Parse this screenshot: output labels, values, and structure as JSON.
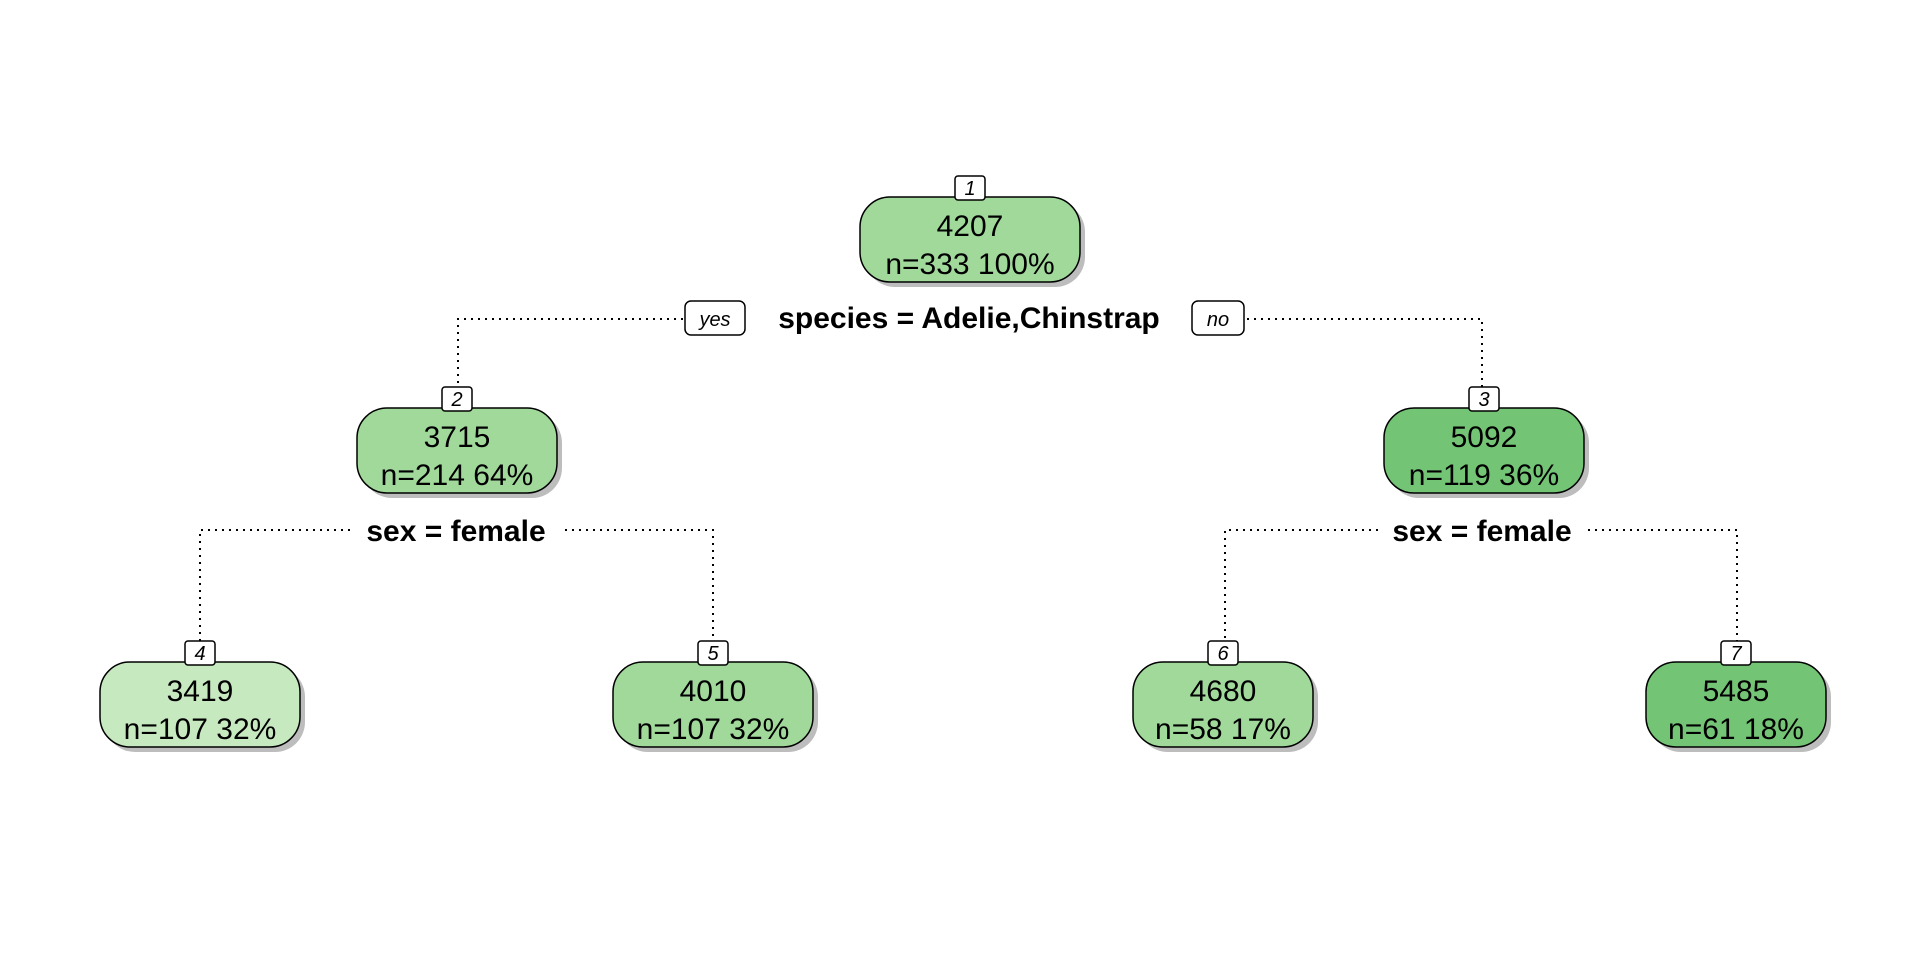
{
  "tree": {
    "nodes": [
      {
        "id": "1",
        "value": "4207",
        "stats": "n=333  100%",
        "fill": "#a1d99b"
      },
      {
        "id": "2",
        "value": "3715",
        "stats": "n=214  64%",
        "fill": "#a1d99b"
      },
      {
        "id": "3",
        "value": "5092",
        "stats": "n=119  36%",
        "fill": "#74c476"
      },
      {
        "id": "4",
        "value": "3419",
        "stats": "n=107  32%",
        "fill": "#c7e9c0"
      },
      {
        "id": "5",
        "value": "4010",
        "stats": "n=107  32%",
        "fill": "#a1d99b"
      },
      {
        "id": "6",
        "value": "4680",
        "stats": "n=58  17%",
        "fill": "#a1d99b"
      },
      {
        "id": "7",
        "value": "5485",
        "stats": "n=61  18%",
        "fill": "#74c476"
      }
    ],
    "splits": [
      {
        "node": "1",
        "label": "species = Adelie,Chinstrap",
        "yes": "yes",
        "no": "no"
      },
      {
        "node": "2",
        "label": "sex = female"
      },
      {
        "node": "3",
        "label": "sex = female"
      }
    ]
  }
}
